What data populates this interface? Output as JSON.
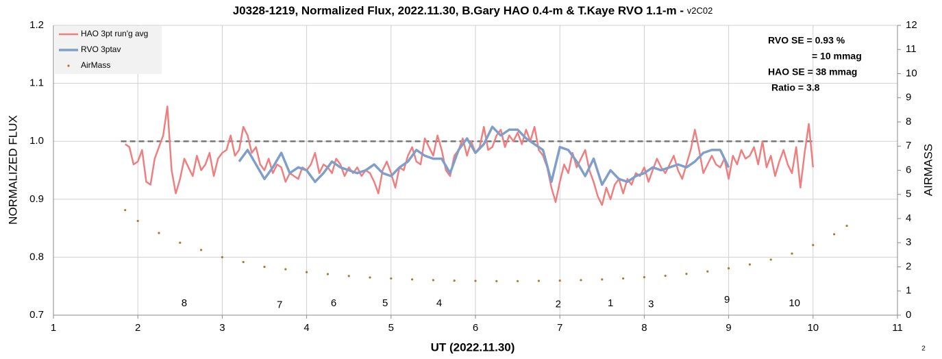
{
  "chart_data": {
    "type": "line",
    "title": "J0328-1219, Normalized Flux, 2022.11.30, B.Gary HAO 0.4-m & T.Kaye RVO 1.1-m -",
    "subtitle": "v2C02",
    "x_label": "UT (2022.11.30)",
    "y_label": "NORMALIZED FLUX",
    "y2_label": "AIRMASS",
    "xlim": [
      1,
      11
    ],
    "xticks": [
      1,
      2,
      3,
      4,
      5,
      6,
      7,
      8,
      9,
      10,
      11
    ],
    "ylim": [
      0.7,
      1.2
    ],
    "yticks": [
      0.7,
      0.8,
      0.9,
      {
        "value": 1,
        "label": "1.0"
      },
      1.1,
      1.2
    ],
    "y2lim": [
      0,
      12
    ],
    "y2ticks": [
      0,
      1,
      2,
      3,
      4,
      5,
      6,
      7,
      8,
      9,
      10,
      11,
      12
    ],
    "grid": true,
    "legend": "upper left",
    "series": [
      {
        "name": "HAO 3pt run'g avg",
        "color": "#ef7f7f",
        "style": "line",
        "x": [
          1.85,
          1.9,
          1.95,
          2.0,
          2.05,
          2.1,
          2.15,
          2.2,
          2.25,
          2.3,
          2.35,
          2.4,
          2.45,
          2.5,
          2.55,
          2.6,
          2.65,
          2.7,
          2.75,
          2.8,
          2.85,
          2.9,
          2.95,
          3.0,
          3.05,
          3.1,
          3.15,
          3.2,
          3.25,
          3.3,
          3.35,
          3.4,
          3.45,
          3.5,
          3.55,
          3.6,
          3.65,
          3.7,
          3.75,
          3.8,
          3.85,
          3.9,
          3.95,
          4.0,
          4.05,
          4.1,
          4.15,
          4.2,
          4.25,
          4.3,
          4.35,
          4.4,
          4.45,
          4.5,
          4.55,
          4.6,
          4.65,
          4.7,
          4.75,
          4.8,
          4.85,
          4.9,
          4.95,
          5.0,
          5.05,
          5.1,
          5.15,
          5.2,
          5.25,
          5.3,
          5.35,
          5.4,
          5.45,
          5.5,
          5.55,
          5.6,
          5.65,
          5.7,
          5.75,
          5.8,
          5.85,
          5.9,
          5.95,
          6.0,
          6.05,
          6.1,
          6.15,
          6.2,
          6.25,
          6.3,
          6.35,
          6.4,
          6.45,
          6.5,
          6.55,
          6.6,
          6.65,
          6.7,
          6.75,
          6.8,
          6.85,
          6.9,
          6.95,
          7.0,
          7.05,
          7.1,
          7.15,
          7.2,
          7.25,
          7.3,
          7.35,
          7.4,
          7.45,
          7.5,
          7.55,
          7.6,
          7.65,
          7.7,
          7.75,
          7.8,
          7.85,
          7.9,
          7.95,
          8.0,
          8.05,
          8.1,
          8.15,
          8.2,
          8.25,
          8.3,
          8.35,
          8.4,
          8.45,
          8.5,
          8.55,
          8.6,
          8.65,
          8.7,
          8.75,
          8.8,
          8.85,
          8.9,
          8.95,
          9.0,
          9.05,
          9.1,
          9.15,
          9.2,
          9.25,
          9.3,
          9.35,
          9.4,
          9.45,
          9.5,
          9.55,
          9.6,
          9.65,
          9.7,
          9.75,
          9.8,
          9.85,
          9.9,
          9.95,
          10.0
        ],
        "values": [
          0.995,
          0.99,
          0.96,
          0.965,
          0.985,
          0.93,
          0.925,
          0.97,
          0.99,
          1.01,
          1.06,
          0.95,
          0.91,
          0.935,
          0.97,
          0.955,
          0.94,
          0.975,
          0.95,
          0.96,
          0.98,
          0.94,
          0.97,
          0.98,
          0.985,
          1.01,
          0.975,
          0.985,
          1.025,
          1.01,
          0.98,
          0.99,
          0.96,
          0.95,
          0.97,
          0.945,
          0.96,
          0.955,
          0.93,
          0.945,
          0.94,
          0.935,
          0.955,
          0.95,
          0.96,
          0.98,
          0.945,
          0.96,
          0.955,
          0.945,
          0.97,
          0.96,
          0.94,
          0.955,
          0.945,
          0.955,
          0.94,
          0.95,
          0.945,
          0.93,
          0.91,
          0.95,
          0.965,
          0.945,
          0.92,
          0.955,
          0.95,
          0.975,
          0.99,
          0.965,
          0.96,
          1.005,
          0.99,
          0.975,
          1.01,
          0.985,
          0.95,
          0.94,
          0.975,
          0.985,
          1.005,
          0.975,
          1.0,
          0.98,
          0.99,
          1.025,
          0.985,
          0.99,
          1.01,
          1.02,
          0.99,
          1.01,
          1.0,
          1.015,
          0.995,
          1.02,
          1.0,
          1.025,
          0.985,
          0.975,
          0.955,
          0.92,
          0.895,
          0.93,
          0.96,
          0.945,
          0.98,
          0.955,
          0.97,
          0.985,
          0.95,
          0.93,
          0.905,
          0.89,
          0.92,
          0.9,
          0.925,
          0.935,
          0.91,
          0.935,
          0.925,
          0.945,
          0.94,
          0.955,
          0.93,
          0.95,
          0.97,
          0.955,
          0.945,
          0.96,
          0.975,
          0.95,
          0.935,
          0.96,
          0.985,
          1.02,
          0.985,
          0.945,
          0.96,
          0.975,
          0.96,
          0.955,
          0.97,
          0.935,
          0.975,
          0.96,
          0.985,
          0.97,
          0.975,
          0.99,
          0.96,
          1.0,
          0.955,
          0.975,
          0.94,
          0.965,
          0.985,
          0.96,
          0.945,
          0.99,
          0.92,
          0.98,
          1.03,
          0.955
        ]
      },
      {
        "name": "RVO 3ptav",
        "color": "#7f9fca",
        "style": "line",
        "x": [
          3.2,
          3.3,
          3.4,
          3.5,
          3.6,
          3.7,
          3.8,
          3.9,
          4.0,
          4.1,
          4.2,
          4.3,
          4.4,
          4.5,
          4.6,
          4.7,
          4.8,
          4.9,
          5.0,
          5.1,
          5.2,
          5.3,
          5.4,
          5.5,
          5.6,
          5.7,
          5.8,
          5.9,
          6.0,
          6.1,
          6.2,
          6.3,
          6.4,
          6.5,
          6.6,
          6.7,
          6.8,
          6.9,
          7.0,
          7.1,
          7.2,
          7.3,
          7.4,
          7.5,
          7.6,
          7.7,
          7.8,
          7.9,
          8.0,
          8.1,
          8.2,
          8.3,
          8.4,
          8.5,
          8.6,
          8.7,
          8.8,
          8.9,
          9.0
        ],
        "values": [
          0.965,
          0.985,
          0.96,
          0.935,
          0.955,
          0.98,
          0.945,
          0.955,
          0.95,
          0.93,
          0.945,
          0.965,
          0.955,
          0.95,
          0.945,
          0.95,
          0.96,
          0.945,
          0.94,
          0.955,
          0.965,
          0.985,
          0.975,
          0.97,
          0.97,
          0.945,
          0.985,
          1.005,
          0.98,
          0.995,
          1.025,
          1.01,
          1.02,
          1.02,
          1.005,
          0.995,
          0.985,
          0.93,
          0.99,
          0.985,
          0.965,
          0.94,
          0.97,
          0.925,
          0.95,
          0.935,
          0.93,
          0.94,
          0.945,
          0.955,
          0.95,
          0.955,
          0.96,
          0.955,
          0.965,
          0.98,
          0.985,
          0.985,
          0.955
        ]
      },
      {
        "name": "AirMass",
        "color": "#b0782a",
        "style": "markers",
        "axis": "y2",
        "x": [
          1.85,
          2.0,
          2.25,
          2.5,
          2.75,
          3.0,
          3.25,
          3.5,
          3.75,
          4.0,
          4.25,
          4.5,
          4.75,
          5.0,
          5.25,
          5.5,
          5.75,
          6.0,
          6.25,
          6.5,
          6.75,
          7.0,
          7.25,
          7.5,
          7.75,
          8.0,
          8.25,
          8.5,
          8.75,
          9.0,
          9.25,
          9.5,
          9.75,
          10.0,
          10.25,
          10.4
        ],
        "values": [
          4.35,
          3.9,
          3.4,
          3.0,
          2.7,
          2.4,
          2.2,
          2.0,
          1.9,
          1.78,
          1.7,
          1.62,
          1.56,
          1.52,
          1.48,
          1.45,
          1.43,
          1.42,
          1.41,
          1.41,
          1.42,
          1.43,
          1.45,
          1.48,
          1.52,
          1.57,
          1.63,
          1.71,
          1.81,
          1.94,
          2.1,
          2.3,
          2.55,
          2.9,
          3.35,
          3.7
        ]
      }
    ],
    "reference_line": {
      "y": 1,
      "x": [
        1.8,
        10
      ],
      "color": "#777777",
      "dashed": true
    },
    "annotations": [
      {
        "text": "8",
        "x": 2.55,
        "y": 0.72
      },
      {
        "text": "7",
        "x": 3.68,
        "y": 0.717
      },
      {
        "text": "6",
        "x": 4.32,
        "y": 0.72
      },
      {
        "text": "5",
        "x": 4.93,
        "y": 0.72
      },
      {
        "text": "4",
        "x": 5.57,
        "y": 0.72
      },
      {
        "text": "2",
        "x": 6.98,
        "y": 0.718
      },
      {
        "text": "1",
        "x": 7.6,
        "y": 0.72
      },
      {
        "text": "3",
        "x": 8.08,
        "y": 0.718
      },
      {
        "text": "9",
        "x": 8.98,
        "y": 0.726
      },
      {
        "text": "10",
        "x": 9.78,
        "y": 0.72
      }
    ],
    "text_box": [
      "RVO SE = 0.93 %",
      "= 10 mmag",
      "HAO SE = 38 mmag",
      "Ratio  =  3.8"
    ],
    "page_number": "2"
  }
}
